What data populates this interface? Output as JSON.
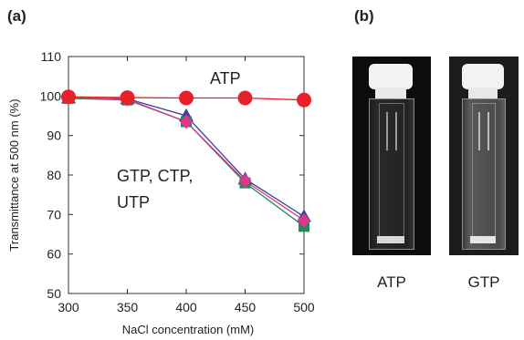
{
  "panel_a_label": "(a)",
  "panel_b_label": "(b)",
  "chart_data": {
    "type": "line",
    "xlabel": "NaCl concentration (mM)",
    "ylabel": "Transmittance at 500 nm (%)",
    "x": [
      300,
      350,
      400,
      450,
      500
    ],
    "xlim": [
      300,
      500
    ],
    "ylim": [
      50,
      110
    ],
    "x_ticks": [
      "300",
      "350",
      "400",
      "450",
      "500"
    ],
    "y_ticks": [
      "50",
      "60",
      "70",
      "80",
      "90",
      "100",
      "110"
    ],
    "grid": false,
    "annotations": [
      "ATP",
      "GTP, CTP,",
      "UTP"
    ],
    "series": [
      {
        "name": "ATP",
        "values": [
          99.8,
          99.6,
          99.5,
          99.5,
          99.0
        ],
        "color": "#e8202a",
        "marker": "circle"
      },
      {
        "name": "",
        "values": [
          99.5,
          99.3,
          95.0,
          79.0,
          69.5
        ],
        "color": "#3a3f9e",
        "marker": "triangle"
      },
      {
        "name": "",
        "values": [
          99.4,
          99.0,
          93.5,
          78.0,
          67.0
        ],
        "color": "#1f8a55",
        "marker": "square"
      },
      {
        "name": "",
        "values": [
          99.6,
          99.2,
          93.5,
          78.5,
          68.5
        ],
        "color": "#e0368a",
        "marker": "diamond"
      }
    ]
  },
  "photos": {
    "left_caption": "ATP",
    "right_caption": "GTP"
  }
}
